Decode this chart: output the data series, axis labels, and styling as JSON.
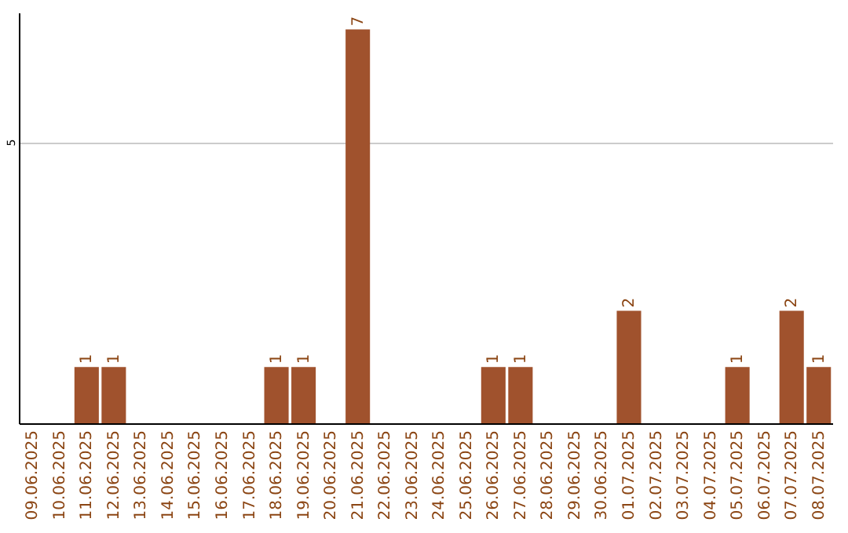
{
  "chart_data": {
    "type": "bar",
    "categories": [
      "09.06.2025",
      "10.06.2025",
      "11.06.2025",
      "12.06.2025",
      "13.06.2025",
      "14.06.2025",
      "15.06.2025",
      "16.06.2025",
      "17.06.2025",
      "18.06.2025",
      "19.06.2025",
      "20.06.2025",
      "21.06.2025",
      "22.06.2025",
      "23.06.2025",
      "24.06.2025",
      "25.06.2025",
      "26.06.2025",
      "27.06.2025",
      "28.06.2025",
      "29.06.2025",
      "30.06.2025",
      "01.07.2025",
      "02.07.2025",
      "03.07.2025",
      "04.07.2025",
      "05.07.2025",
      "06.07.2025",
      "07.07.2025",
      "08.07.2025"
    ],
    "values": [
      0,
      0,
      1,
      1,
      0,
      0,
      0,
      0,
      0,
      1,
      1,
      0,
      7,
      0,
      0,
      0,
      0,
      1,
      1,
      0,
      0,
      0,
      2,
      0,
      0,
      0,
      1,
      0,
      2,
      1
    ],
    "value_labels": [
      null,
      null,
      "1",
      "1",
      null,
      null,
      null,
      null,
      null,
      "1",
      "1",
      null,
      "7",
      null,
      null,
      null,
      null,
      "1",
      "1",
      null,
      null,
      null,
      "2",
      null,
      null,
      null,
      "1",
      null,
      "2",
      "1"
    ],
    "color": "#a0522d",
    "ylim": [
      0,
      7.3
    ],
    "yticks": [
      5
    ],
    "grid": "y"
  }
}
